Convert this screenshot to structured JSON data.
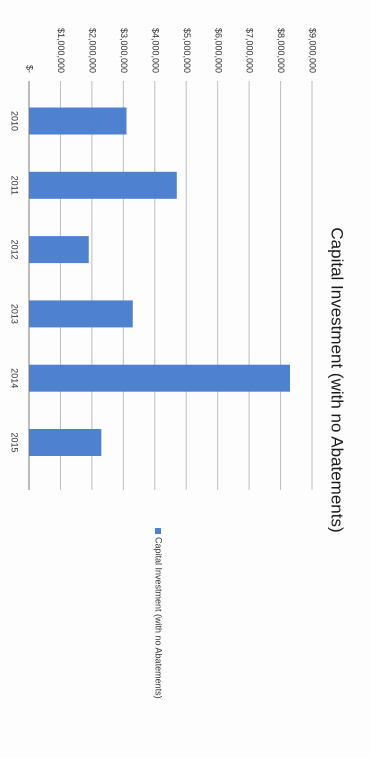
{
  "chart_data": {
    "type": "bar",
    "orientation": "rotated-90-clockwise",
    "title": "Capital Investment (with no Abatements)",
    "categories": [
      "2010",
      "2011",
      "2012",
      "2013",
      "2014",
      "2015"
    ],
    "series": [
      {
        "name": "Capital Investment (with no Abatements)",
        "values": [
          3100000,
          4700000,
          1900000,
          3300000,
          8300000,
          2300000
        ],
        "color": "#4f81d1"
      }
    ],
    "y_ticks": [
      "$-",
      "$1,000,000",
      "$2,000,000",
      "$3,000,000",
      "$4,000,000",
      "$5,000,000",
      "$6,000,000",
      "$7,000,000",
      "$8,000,000",
      "$9,000,000"
    ],
    "ylim": [
      0,
      9000000
    ],
    "grid": true,
    "legend_position": "right"
  }
}
